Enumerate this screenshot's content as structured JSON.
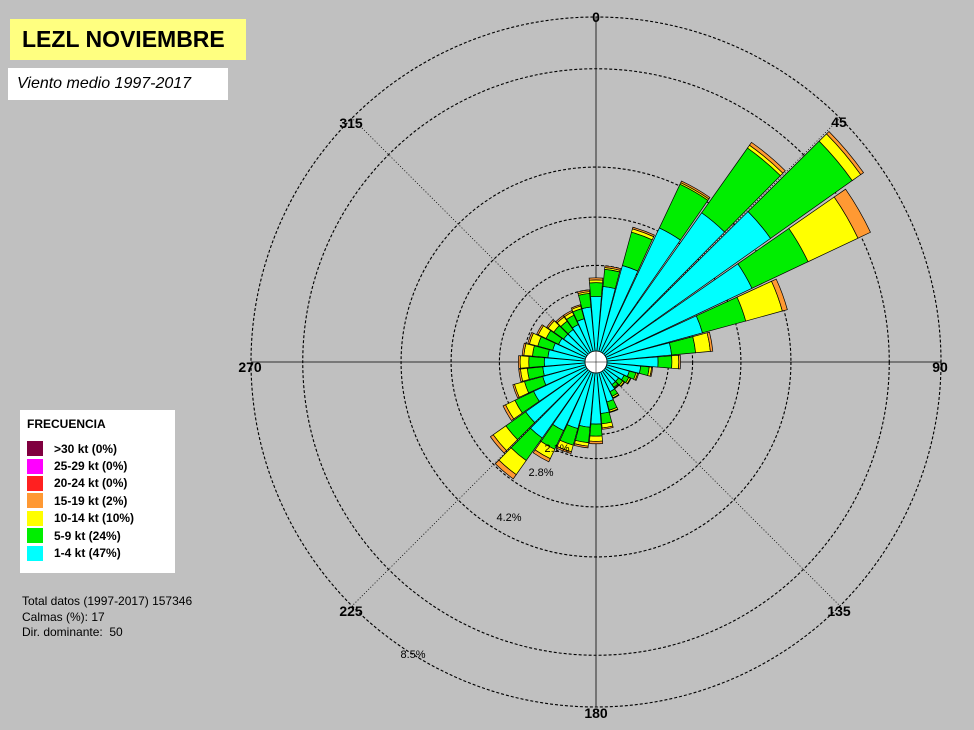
{
  "title": "LEZL NOVIEMBRE",
  "subtitle": "Viento medio 1997-2017",
  "legend": {
    "title": "FRECUENCIA",
    "items": [
      {
        "label": ">30 kt (0%)",
        "color": "#800040"
      },
      {
        "label": "25-29 kt (0%)",
        "color": "#ff00ff"
      },
      {
        "label": "20-24 kt (0%)",
        "color": "#ff2020"
      },
      {
        "label": "15-19 kt (2%)",
        "color": "#ff9933"
      },
      {
        "label": "10-14 kt (10%)",
        "color": "#ffff00"
      },
      {
        "label": "5-9 kt (24%)",
        "color": "#00ee00"
      },
      {
        "label": "1-4 kt (47%)",
        "color": "#00ffff"
      }
    ]
  },
  "stats": {
    "total": "Total datos (1997-2017) 157346",
    "calms": "Calmas (%): 17",
    "dominant": "Dir. dominante:  50"
  },
  "chart_data": {
    "type": "wind-rose",
    "title": "LEZL NOVIEMBRE",
    "subtitle": "Viento medio 1997-2017",
    "direction_labels": [
      "0",
      "45",
      "90",
      "135",
      "180",
      "225",
      "270",
      "315"
    ],
    "ring_labels": [
      "2.1%",
      "2.8%",
      "4.2%",
      "8.5%"
    ],
    "ring_values": [
      2.1,
      2.8,
      4.2,
      8.5
    ],
    "dashed_ring_values": [
      5.65,
      10
    ],
    "sector_width_deg": 10,
    "speed_classes": [
      "1-4 kt",
      "5-9 kt",
      "10-14 kt",
      "15-19 kt",
      "20-24 kt",
      "25-29 kt",
      ">30 kt"
    ],
    "sectors": [
      {
        "dir": 0,
        "cum": [
          1.9,
          2.3,
          2.38,
          2.44
        ]
      },
      {
        "dir": 10,
        "cum": [
          2.2,
          2.7,
          2.75,
          2.8
        ]
      },
      {
        "dir": 20,
        "cum": [
          2.9,
          3.9,
          4.0,
          4.05
        ]
      },
      {
        "dir": 30,
        "cum": [
          4.3,
          5.7,
          5.75,
          5.8
        ]
      },
      {
        "dir": 40,
        "cum": [
          5.3,
          7.6,
          7.7,
          7.8
        ]
      },
      {
        "dir": 50,
        "cum": [
          6.2,
          9.1,
          9.4,
          9.5
        ]
      },
      {
        "dir": 60,
        "cum": [
          5.0,
          6.8,
          8.4,
          8.8
        ]
      },
      {
        "dir": 70,
        "cum": [
          3.2,
          4.5,
          5.6,
          5.75
        ]
      },
      {
        "dir": 80,
        "cum": [
          2.2,
          2.9,
          3.33,
          3.4
        ]
      },
      {
        "dir": 90,
        "cum": [
          1.8,
          2.2,
          2.4,
          2.45
        ]
      },
      {
        "dir": 100,
        "cum": [
          1.3,
          1.55,
          1.62,
          1.65
        ]
      },
      {
        "dir": 110,
        "cum": [
          1.0,
          1.2,
          1.25,
          1.28
        ]
      },
      {
        "dir": 120,
        "cum": [
          0.9,
          1.05,
          1.1,
          1.12
        ]
      },
      {
        "dir": 130,
        "cum": [
          0.8,
          0.95,
          1.0,
          1.02
        ]
      },
      {
        "dir": 140,
        "cum": [
          0.8,
          0.9,
          0.93,
          0.95
        ]
      },
      {
        "dir": 150,
        "cum": [
          0.95,
          1.1,
          1.15,
          1.17
        ]
      },
      {
        "dir": 160,
        "cum": [
          1.2,
          1.45,
          1.5,
          1.52
        ]
      },
      {
        "dir": 170,
        "cum": [
          1.5,
          1.8,
          1.92,
          1.96
        ]
      },
      {
        "dir": 180,
        "cum": [
          1.8,
          2.15,
          2.3,
          2.37
        ]
      },
      {
        "dir": 190,
        "cum": [
          1.9,
          2.35,
          2.45,
          2.5
        ]
      },
      {
        "dir": 200,
        "cum": [
          2.0,
          2.5,
          2.7,
          2.75
        ]
      },
      {
        "dir": 210,
        "cum": [
          2.2,
          2.8,
          3.1,
          3.2
        ]
      },
      {
        "dir": 220,
        "cum": [
          2.7,
          3.5,
          4.0,
          4.15
        ]
      },
      {
        "dir": 230,
        "cum": [
          2.5,
          3.2,
          3.65,
          3.75
        ]
      },
      {
        "dir": 240,
        "cum": [
          2.0,
          2.6,
          2.9,
          2.98
        ]
      },
      {
        "dir": 250,
        "cum": [
          1.6,
          2.15,
          2.45,
          2.5
        ]
      },
      {
        "dir": 260,
        "cum": [
          1.55,
          2.0,
          2.2,
          2.25
        ]
      },
      {
        "dir": 270,
        "cum": [
          1.5,
          1.95,
          2.2,
          2.25
        ]
      },
      {
        "dir": 280,
        "cum": [
          1.4,
          1.85,
          2.1,
          2.15
        ]
      },
      {
        "dir": 290,
        "cum": [
          1.3,
          1.75,
          2.0,
          2.05
        ]
      },
      {
        "dir": 300,
        "cum": [
          1.2,
          1.6,
          1.85,
          1.9
        ]
      },
      {
        "dir": 310,
        "cum": [
          1.15,
          1.5,
          1.7,
          1.75
        ]
      },
      {
        "dir": 320,
        "cum": [
          1.15,
          1.45,
          1.6,
          1.65
        ]
      },
      {
        "dir": 330,
        "cum": [
          1.2,
          1.5,
          1.6,
          1.65
        ]
      },
      {
        "dir": 340,
        "cum": [
          1.3,
          1.6,
          1.68,
          1.72
        ]
      },
      {
        "dir": 350,
        "cum": [
          1.6,
          2.0,
          2.05,
          2.1
        ]
      }
    ],
    "colors": {
      "c1": "#00ffff",
      "c2": "#00ee00",
      "c3": "#ffff00",
      "c4": "#ff9933",
      "c5": "#ff2020",
      "background": "#c0c0c0"
    }
  }
}
